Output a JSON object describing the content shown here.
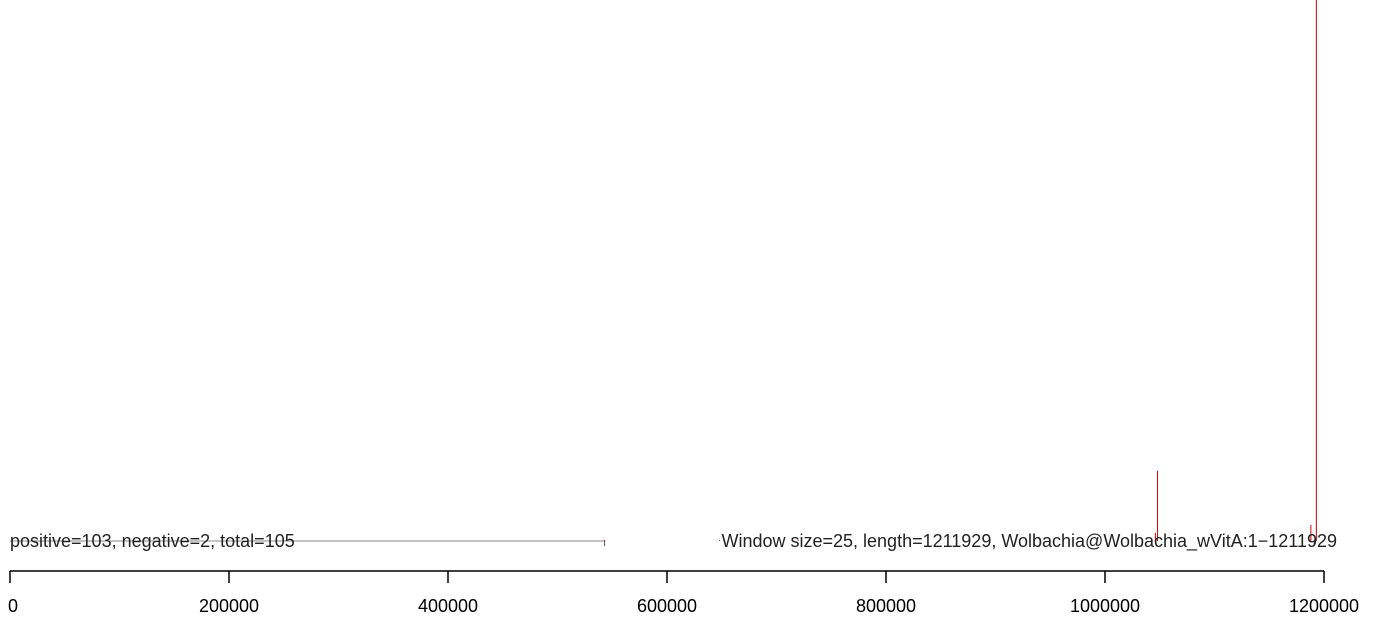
{
  "chart_data": {
    "type": "bar",
    "summary_left": "positive=103, negative=2, total=105",
    "summary_right": "Window size=25, length=1211929, Wolbachia@Wolbachia_wVitA:1−1211929",
    "x_ticks": [
      "0",
      "200000",
      "400000",
      "600000",
      "800000",
      "1000000",
      "1200000"
    ],
    "xlim": [
      0,
      1200000
    ],
    "baseline": 0,
    "positive_color": "#cc0000",
    "negative_color": "#555555",
    "baseline_color": "#888888",
    "positive_spikes": [
      {
        "x": 543000,
        "value": 0.2
      },
      {
        "x": 648000,
        "value": 0.15
      },
      {
        "x": 720000,
        "value": 0.15
      },
      {
        "x": 730000,
        "value": 0.15
      },
      {
        "x": 1046000,
        "value": 1.5
      },
      {
        "x": 1048000,
        "value": 13
      },
      {
        "x": 1188000,
        "value": 3
      },
      {
        "x": 1193000,
        "value": 100
      }
    ],
    "negative_spikes": [
      {
        "x": 543000,
        "value": -0.5
      },
      {
        "x": 1191000,
        "value": -0.5
      }
    ]
  }
}
